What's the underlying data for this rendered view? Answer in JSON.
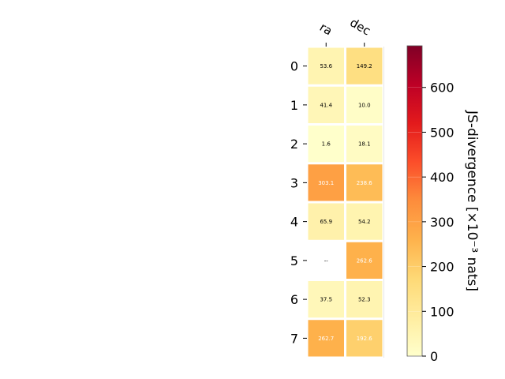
{
  "chart_data": {
    "type": "heatmap",
    "columns": [
      "ra",
      "dec"
    ],
    "rows": [
      "0",
      "1",
      "2",
      "3",
      "4",
      "5",
      "6",
      "7"
    ],
    "values": [
      [
        53.6,
        149.2
      ],
      [
        41.4,
        10.0
      ],
      [
        1.6,
        18.1
      ],
      [
        303.1,
        238.6
      ],
      [
        65.9,
        54.2
      ],
      [
        null,
        262.6
      ],
      [
        37.5,
        52.3
      ],
      [
        262.7,
        192.6
      ]
    ],
    "cell_labels": [
      [
        "53.6",
        "149.2"
      ],
      [
        "41.4",
        "10.0"
      ],
      [
        "1.6",
        "18.1"
      ],
      [
        "303.1",
        "238.6"
      ],
      [
        "65.9",
        "54.2"
      ],
      [
        "--",
        "262.6"
      ],
      [
        "37.5",
        "52.3"
      ],
      [
        "262.7",
        "192.6"
      ]
    ],
    "colorbar": {
      "label": "JS-divergence [×10⁻³ nats]",
      "range": [
        0,
        693
      ],
      "ticks": [
        0,
        100,
        200,
        300,
        400,
        500,
        600
      ],
      "colormap": "YlOrRd",
      "colormap_stops": [
        "#ffffcc",
        "#ffeda0",
        "#fed976",
        "#feb24c",
        "#fd8d3c",
        "#fc4e2a",
        "#e31a1c",
        "#bd0026",
        "#800026"
      ]
    },
    "grid": false
  }
}
